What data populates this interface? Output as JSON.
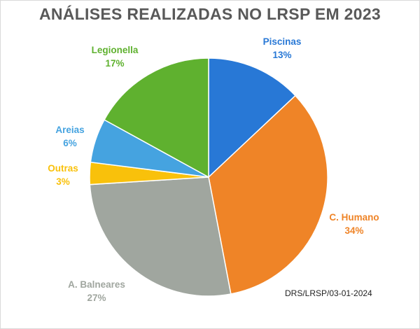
{
  "chart_data": {
    "type": "pie",
    "title": "ANÁLISES REALIZADAS NO LRSP EM 2023",
    "slices": [
      {
        "label": "Piscinas",
        "value": 13,
        "value_label": "13%",
        "color": "#2878d6"
      },
      {
        "label": "C. Humano",
        "value": 34,
        "value_label": "34%",
        "color": "#ef8427"
      },
      {
        "label": "A. Balneares",
        "value": 27,
        "value_label": "27%",
        "color": "#a0a69f"
      },
      {
        "label": "Outras",
        "value": 3,
        "value_label": "3%",
        "color": "#f9c10b"
      },
      {
        "label": "Areias",
        "value": 6,
        "value_label": "6%",
        "color": "#45a3e0"
      },
      {
        "label": "Legionella",
        "value": 17,
        "value_label": "17%",
        "color": "#5fb12f"
      }
    ],
    "start_angle_deg": 0,
    "direction": "clockwise",
    "legend": "none",
    "source_note": "DRS/LRSP/03-01-2024"
  }
}
